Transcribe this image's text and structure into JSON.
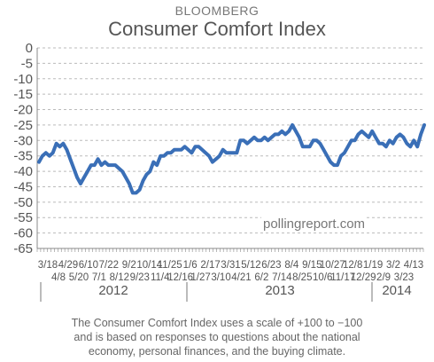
{
  "source_label": "BLOOMBERG",
  "watermark": "pollingreport.com",
  "caption": [
    "The Consumer Comfort Index uses a scale of +100 to −100",
    "and is based on responses to questions about the national",
    "economy, personal finances, and the buying climate."
  ],
  "chart_data": {
    "type": "line",
    "title": "Consumer Comfort Index",
    "xlabel": "",
    "ylabel": "",
    "ylim": [
      -65,
      0
    ],
    "yticks": [
      0,
      -5,
      -10,
      -15,
      -20,
      -25,
      -30,
      -35,
      -40,
      -45,
      -50,
      -55,
      -60,
      -65
    ],
    "grid": true,
    "line_color": "#3a6fb7",
    "x_tick_labels_top": [
      "3/18",
      "4/29",
      "6/10",
      "7/22",
      "9/2",
      "10/14",
      "11/25",
      "1/6",
      "2/17",
      "3/31",
      "5/12",
      "6/23",
      "8/4",
      "9/15",
      "10/27",
      "12/8",
      "1/19",
      "3/2",
      "4/13"
    ],
    "x_tick_labels_bottom": [
      "4/8",
      "5/20",
      "7/1",
      "8/12",
      "9/23",
      "11/4",
      "12/16",
      "1/27",
      "3/10",
      "4/21",
      "6/2",
      "7/14",
      "8/25",
      "10/6",
      "11/17",
      "12/29",
      "2/9",
      "3/23"
    ],
    "year_labels": [
      "2012",
      "2013",
      "2014"
    ],
    "series": [
      {
        "values": [
          -37,
          -35,
          -34,
          -35,
          -34,
          -31,
          -32,
          -31,
          -33,
          -36,
          -39,
          -42,
          -44,
          -42,
          -40,
          -38,
          -38,
          -36,
          -38,
          -37,
          -38,
          -38,
          -38,
          -39,
          -40,
          -42,
          -44,
          -47,
          -47,
          -46,
          -43,
          -41,
          -40,
          -37,
          -38,
          -35,
          -35,
          -34,
          -34,
          -33,
          -33,
          -33,
          -32,
          -33,
          -34,
          -32,
          -32,
          -33,
          -34,
          -35,
          -37,
          -36,
          -35,
          -33,
          -34,
          -34,
          -34,
          -34,
          -30,
          -30,
          -31,
          -30,
          -29,
          -30,
          -30,
          -29,
          -30,
          -29,
          -28,
          -28,
          -27,
          -28,
          -27,
          -25,
          -27,
          -29,
          -32,
          -32,
          -32,
          -30,
          -30,
          -31,
          -33,
          -35,
          -37,
          -38,
          -38,
          -35,
          -34,
          -32,
          -30,
          -30,
          -28,
          -27,
          -28,
          -29,
          -27,
          -29,
          -31,
          -31,
          -32,
          -30,
          -31,
          -29,
          -28,
          -29,
          -31,
          -32,
          -30,
          -32,
          -28,
          -25
        ]
      }
    ]
  }
}
